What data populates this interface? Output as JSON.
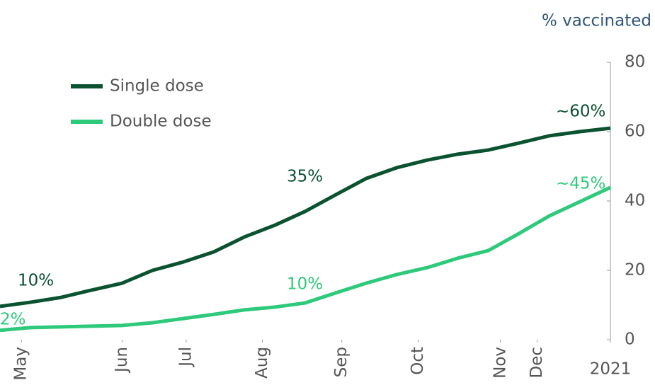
{
  "chart_data": {
    "type": "line",
    "y_axis_label": "% vaccinated",
    "x": [
      0,
      5,
      10,
      15,
      20,
      25,
      30,
      35,
      40,
      45,
      50,
      55,
      60,
      65,
      70,
      75,
      80,
      85,
      90,
      95,
      100
    ],
    "series": [
      {
        "name": "Single dose",
        "color": "#0b5230",
        "values": [
          9.6,
          10.8,
          12.2,
          14.3,
          16.3,
          20,
          22.4,
          25.3,
          29.6,
          33,
          37,
          41.8,
          46.5,
          49.6,
          51.8,
          53.5,
          54.7,
          56.7,
          58.8,
          60,
          61
        ]
      },
      {
        "name": "Double dose",
        "color": "#2ec97a",
        "values": [
          2.7,
          3.5,
          3.7,
          3.9,
          4.1,
          4.9,
          6.1,
          7.3,
          8.6,
          9.4,
          10.6,
          13.5,
          16.3,
          18.8,
          20.8,
          23.5,
          25.7,
          30.6,
          35.7,
          39.8,
          43.9
        ]
      }
    ],
    "xlim": [
      0,
      100
    ],
    "xticks": [
      {
        "value": 3.5,
        "label": "May"
      },
      {
        "value": 20,
        "label": "Jun"
      },
      {
        "value": 30.5,
        "label": "Jul"
      },
      {
        "value": 43,
        "label": "Aug"
      },
      {
        "value": 56,
        "label": "Sep"
      },
      {
        "value": 68.5,
        "label": "Oct"
      },
      {
        "value": 82,
        "label": "Nov"
      },
      {
        "value": 88,
        "label": "Dec"
      },
      {
        "value": 100,
        "label": "2021"
      }
    ],
    "ylim": [
      0,
      80
    ],
    "yticks": [
      0,
      20,
      40,
      60,
      80
    ],
    "annotations": [
      {
        "text": "10%",
        "series": 0
      },
      {
        "text": "35%",
        "series": 0
      },
      {
        "text": "~60%",
        "series": 0
      },
      {
        "text": "2%",
        "series": 1
      },
      {
        "text": "10%",
        "series": 1
      },
      {
        "text": "~45%",
        "series": 1
      }
    ]
  }
}
